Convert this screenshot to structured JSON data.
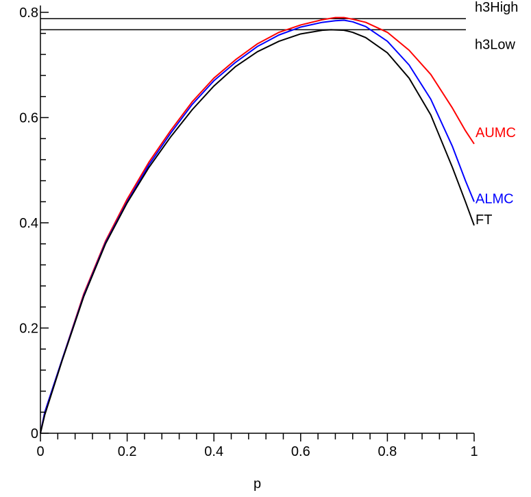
{
  "chart_data": {
    "type": "line",
    "title": "",
    "xlabel": "p",
    "ylabel": "",
    "xlim": [
      0,
      1
    ],
    "ylim": [
      0,
      0.8
    ],
    "grid": false,
    "x_ticks": [
      {
        "value": 0,
        "label": "0"
      },
      {
        "value": 0.2,
        "label": "0.2"
      },
      {
        "value": 0.4,
        "label": "0.4"
      },
      {
        "value": 0.6,
        "label": "0.6"
      },
      {
        "value": 0.8,
        "label": "0.8"
      },
      {
        "value": 1,
        "label": "1"
      }
    ],
    "y_ticks": [
      {
        "value": 0,
        "label": "0"
      },
      {
        "value": 0.2,
        "label": "0.2"
      },
      {
        "value": 0.4,
        "label": "0.4"
      },
      {
        "value": 0.6,
        "label": "0.6"
      },
      {
        "value": 0.8,
        "label": "0.8"
      }
    ],
    "hlines": [
      {
        "name": "h3High",
        "y": 0.788,
        "color": "#000000"
      },
      {
        "name": "h3Low",
        "y": 0.767,
        "color": "#000000"
      }
    ],
    "series": [
      {
        "name": "AUMC",
        "color": "#ff0000",
        "x": [
          0,
          0.01,
          0.05,
          0.1,
          0.15,
          0.2,
          0.25,
          0.3,
          0.35,
          0.4,
          0.45,
          0.5,
          0.55,
          0.6,
          0.65,
          0.68,
          0.7,
          0.72,
          0.75,
          0.8,
          0.85,
          0.9,
          0.95,
          0.98,
          1
        ],
        "y": [
          0,
          0.04,
          0.14,
          0.265,
          0.365,
          0.445,
          0.515,
          0.575,
          0.63,
          0.675,
          0.71,
          0.74,
          0.762,
          0.776,
          0.786,
          0.79,
          0.79,
          0.787,
          0.781,
          0.762,
          0.728,
          0.682,
          0.618,
          0.575,
          0.55
        ]
      },
      {
        "name": "ALMC",
        "color": "#0000ff",
        "x": [
          0,
          0.01,
          0.05,
          0.1,
          0.15,
          0.2,
          0.25,
          0.3,
          0.35,
          0.4,
          0.45,
          0.5,
          0.55,
          0.6,
          0.65,
          0.68,
          0.7,
          0.72,
          0.75,
          0.8,
          0.85,
          0.9,
          0.95,
          0.98,
          1
        ],
        "y": [
          0,
          0.04,
          0.14,
          0.262,
          0.362,
          0.44,
          0.51,
          0.57,
          0.625,
          0.67,
          0.705,
          0.735,
          0.757,
          0.772,
          0.781,
          0.784,
          0.785,
          0.782,
          0.773,
          0.745,
          0.7,
          0.635,
          0.545,
          0.48,
          0.44
        ]
      },
      {
        "name": "FT",
        "color": "#000000",
        "x": [
          0,
          0.01,
          0.05,
          0.1,
          0.15,
          0.2,
          0.25,
          0.3,
          0.35,
          0.4,
          0.45,
          0.5,
          0.55,
          0.6,
          0.65,
          0.67,
          0.7,
          0.72,
          0.75,
          0.8,
          0.85,
          0.9,
          0.95,
          0.98,
          1
        ],
        "y": [
          0,
          0.035,
          0.138,
          0.26,
          0.36,
          0.438,
          0.505,
          0.563,
          0.615,
          0.66,
          0.697,
          0.725,
          0.745,
          0.759,
          0.766,
          0.767,
          0.766,
          0.762,
          0.752,
          0.723,
          0.675,
          0.605,
          0.505,
          0.44,
          0.395
        ]
      }
    ]
  }
}
